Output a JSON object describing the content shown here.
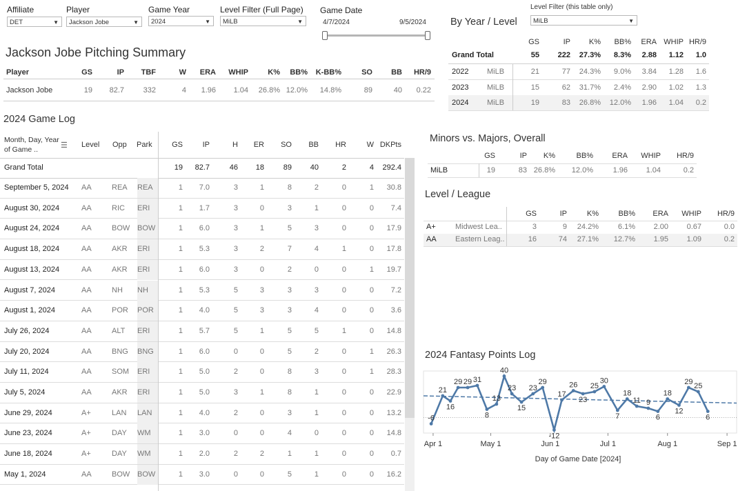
{
  "filters": {
    "affiliate": {
      "label": "Affiliate",
      "value": "DET"
    },
    "player": {
      "label": "Player",
      "value": "Jackson Jobe"
    },
    "game_year": {
      "label": "Game Year",
      "value": "2024"
    },
    "level_filter": {
      "label": "Level Filter (Full Page)",
      "value": "MiLB"
    },
    "game_date": {
      "label": "Game Date",
      "start": "4/7/2024",
      "end": "9/5/2024"
    },
    "table_level_filter": {
      "label": "Level Filter (this table only)",
      "value": "MiLB"
    }
  },
  "summary": {
    "title": "Jackson Jobe Pitching Summary",
    "headers": [
      "Player",
      "GS",
      "IP",
      "TBF",
      "W",
      "ERA",
      "WHIP",
      "K%",
      "BB%",
      "K-BB%",
      "SO",
      "BB",
      "HR/9"
    ],
    "row": [
      "Jackson Jobe",
      "19",
      "82.7",
      "332",
      "4",
      "1.96",
      "1.04",
      "26.8%",
      "12.0%",
      "14.8%",
      "89",
      "40",
      "0.22"
    ]
  },
  "by_year": {
    "title": "By Year / Level",
    "headers": [
      "GS",
      "IP",
      "K%",
      "BB%",
      "ERA",
      "WHIP",
      "HR/9"
    ],
    "grand_total": {
      "label": "Grand Total",
      "values": [
        "55",
        "222",
        "27.3%",
        "8.3%",
        "2.88",
        "1.12",
        "1.0"
      ]
    },
    "rows": [
      {
        "year": "2022",
        "level": "MiLB",
        "values": [
          "21",
          "77",
          "24.3%",
          "9.0%",
          "3.84",
          "1.28",
          "1.6"
        ]
      },
      {
        "year": "2023",
        "level": "MiLB",
        "values": [
          "15",
          "62",
          "31.7%",
          "2.4%",
          "2.90",
          "1.02",
          "1.3"
        ]
      },
      {
        "year": "2024",
        "level": "MiLB",
        "values": [
          "19",
          "83",
          "26.8%",
          "12.0%",
          "1.96",
          "1.04",
          "0.2"
        ]
      }
    ]
  },
  "game_log": {
    "title": "2024 Game Log",
    "headers": {
      "date": "Month, Day, Year of Game ..",
      "level": "Level",
      "opp": "Opp",
      "park": "Park",
      "stats": [
        "GS",
        "IP",
        "H",
        "ER",
        "SO",
        "BB",
        "HR",
        "W",
        "DKPts"
      ]
    },
    "grand_total": {
      "label": "Grand Total",
      "values": [
        "19",
        "82.7",
        "46",
        "18",
        "89",
        "40",
        "2",
        "4",
        "292.4"
      ]
    },
    "rows": [
      {
        "date": "September 5, 2024",
        "level": "AA",
        "opp": "REA",
        "park": "REA",
        "values": [
          "1",
          "7.0",
          "3",
          "1",
          "8",
          "2",
          "0",
          "1",
          "30.8"
        ]
      },
      {
        "date": "August 30, 2024",
        "level": "AA",
        "opp": "RIC",
        "park": "ERI",
        "values": [
          "1",
          "1.7",
          "3",
          "0",
          "3",
          "1",
          "0",
          "0",
          "7.4"
        ]
      },
      {
        "date": "August 24, 2024",
        "level": "AA",
        "opp": "BOW",
        "park": "BOW",
        "values": [
          "1",
          "6.0",
          "3",
          "1",
          "5",
          "3",
          "0",
          "0",
          "17.9"
        ]
      },
      {
        "date": "August 18, 2024",
        "level": "AA",
        "opp": "AKR",
        "park": "ERI",
        "values": [
          "1",
          "5.3",
          "3",
          "2",
          "7",
          "4",
          "1",
          "0",
          "17.8"
        ]
      },
      {
        "date": "August 13, 2024",
        "level": "AA",
        "opp": "AKR",
        "park": "ERI",
        "values": [
          "1",
          "6.0",
          "3",
          "0",
          "2",
          "0",
          "0",
          "1",
          "19.7"
        ]
      },
      {
        "date": "August 7, 2024",
        "level": "AA",
        "opp": "NH",
        "park": "NH",
        "values": [
          "1",
          "5.3",
          "5",
          "3",
          "3",
          "3",
          "0",
          "0",
          "7.2"
        ]
      },
      {
        "date": "August 1, 2024",
        "level": "AA",
        "opp": "POR",
        "park": "POR",
        "values": [
          "1",
          "4.0",
          "5",
          "3",
          "3",
          "4",
          "0",
          "0",
          "3.6"
        ]
      },
      {
        "date": "July 26, 2024",
        "level": "AA",
        "opp": "ALT",
        "park": "ERI",
        "values": [
          "1",
          "5.7",
          "5",
          "1",
          "5",
          "5",
          "1",
          "0",
          "14.8"
        ]
      },
      {
        "date": "July 20, 2024",
        "level": "AA",
        "opp": "BNG",
        "park": "BNG",
        "values": [
          "1",
          "6.0",
          "0",
          "0",
          "5",
          "2",
          "0",
          "1",
          "26.3"
        ]
      },
      {
        "date": "July 11, 2024",
        "level": "AA",
        "opp": "SOM",
        "park": "ERI",
        "values": [
          "1",
          "5.0",
          "2",
          "0",
          "8",
          "3",
          "0",
          "1",
          "28.3"
        ]
      },
      {
        "date": "July 5, 2024",
        "level": "AA",
        "opp": "AKR",
        "park": "ERI",
        "values": [
          "1",
          "5.0",
          "3",
          "1",
          "8",
          "1",
          "0",
          "0",
          "22.9"
        ]
      },
      {
        "date": "June 29, 2024",
        "level": "A+",
        "opp": "LAN",
        "park": "LAN",
        "values": [
          "1",
          "4.0",
          "2",
          "0",
          "3",
          "1",
          "0",
          "0",
          "13.2"
        ]
      },
      {
        "date": "June 23, 2024",
        "level": "A+",
        "opp": "DAY",
        "park": "WM",
        "values": [
          "1",
          "3.0",
          "0",
          "0",
          "4",
          "0",
          "0",
          "0",
          "14.8"
        ]
      },
      {
        "date": "June 18, 2024",
        "level": "A+",
        "opp": "DAY",
        "park": "WM",
        "values": [
          "1",
          "2.0",
          "2",
          "2",
          "1",
          "1",
          "0",
          "0",
          "0.7"
        ]
      },
      {
        "date": "May 1, 2024",
        "level": "AA",
        "opp": "BOW",
        "park": "BOW",
        "values": [
          "1",
          "3.0",
          "0",
          "0",
          "5",
          "1",
          "0",
          "0",
          "16.2"
        ]
      }
    ]
  },
  "minors_majors": {
    "title": "Minors vs. Majors, Overall",
    "headers": [
      "GS",
      "IP",
      "K%",
      "BB%",
      "ERA",
      "WHIP",
      "HR/9"
    ],
    "rows": [
      {
        "label": "MiLB",
        "values": [
          "19",
          "83",
          "26.8%",
          "12.0%",
          "1.96",
          "1.04",
          "0.2"
        ]
      }
    ]
  },
  "level_league": {
    "title": "Level / League",
    "headers": [
      "GS",
      "IP",
      "K%",
      "BB%",
      "ERA",
      "WHIP",
      "HR/9"
    ],
    "rows": [
      {
        "level": "A+",
        "league": "Midwest Lea..",
        "values": [
          "3",
          "9",
          "24.2%",
          "6.1%",
          "2.00",
          "0.67",
          "0.0"
        ]
      },
      {
        "level": "AA",
        "league": "Eastern Leag..",
        "values": [
          "16",
          "74",
          "27.1%",
          "12.7%",
          "1.95",
          "1.09",
          "0.2"
        ]
      }
    ]
  },
  "colors": {
    "line": "#4e79a7",
    "trend": "#4e79a7"
  },
  "chart_data": {
    "type": "line",
    "title": "2024 Fantasy Points Log",
    "xlabel": "Day of Game Date [2024]",
    "x_ticks": [
      "Apr 1",
      "May 1",
      "Jun 1",
      "Jul 1",
      "Aug 1",
      "Sep 1"
    ],
    "x_tick_days": [
      0,
      30,
      61,
      91,
      122,
      153
    ],
    "ylim": [
      -15,
      45
    ],
    "points": [
      {
        "day": -1,
        "value": -6,
        "label": "-6"
      },
      {
        "day": 5,
        "value": 21,
        "label": "21"
      },
      {
        "day": 9,
        "value": 16,
        "label": "16"
      },
      {
        "day": 13,
        "value": 29,
        "label": "29"
      },
      {
        "day": 18,
        "value": 29,
        "label": "29"
      },
      {
        "day": 23,
        "value": 31,
        "label": "31"
      },
      {
        "day": 28,
        "value": 8,
        "label": "8"
      },
      {
        "day": 33,
        "value": 13,
        "label": "13"
      },
      {
        "day": 37,
        "value": 40,
        "label": "40"
      },
      {
        "day": 41,
        "value": 23,
        "label": "23"
      },
      {
        "day": 46,
        "value": 15,
        "label": "15"
      },
      {
        "day": 52,
        "value": 23,
        "label": "23"
      },
      {
        "day": 57,
        "value": 29,
        "label": "29"
      },
      {
        "day": 63,
        "value": -12,
        "label": "-12"
      },
      {
        "day": 67,
        "value": 17,
        "label": "17"
      },
      {
        "day": 73,
        "value": 26,
        "label": "26"
      },
      {
        "day": 78,
        "value": 23,
        "label": "23"
      },
      {
        "day": 84,
        "value": 25,
        "label": "25"
      },
      {
        "day": 89,
        "value": 30,
        "label": "30"
      },
      {
        "day": 96,
        "value": 7,
        "label": "7"
      },
      {
        "day": 101,
        "value": 18,
        "label": "18"
      },
      {
        "day": 106,
        "value": 11,
        "label": "11"
      },
      {
        "day": 112,
        "value": 9,
        "label": "9"
      },
      {
        "day": 117,
        "value": 6,
        "label": "6"
      },
      {
        "day": 122,
        "value": 18,
        "label": "18"
      },
      {
        "day": 128,
        "value": 12,
        "label": "12"
      },
      {
        "day": 133,
        "value": 29,
        "label": "29"
      },
      {
        "day": 138,
        "value": 25,
        "label": "25"
      },
      {
        "day": 143,
        "value": 6,
        "label": "6"
      }
    ],
    "trend": {
      "start": 21,
      "end": 14
    },
    "reference_line": 0
  }
}
